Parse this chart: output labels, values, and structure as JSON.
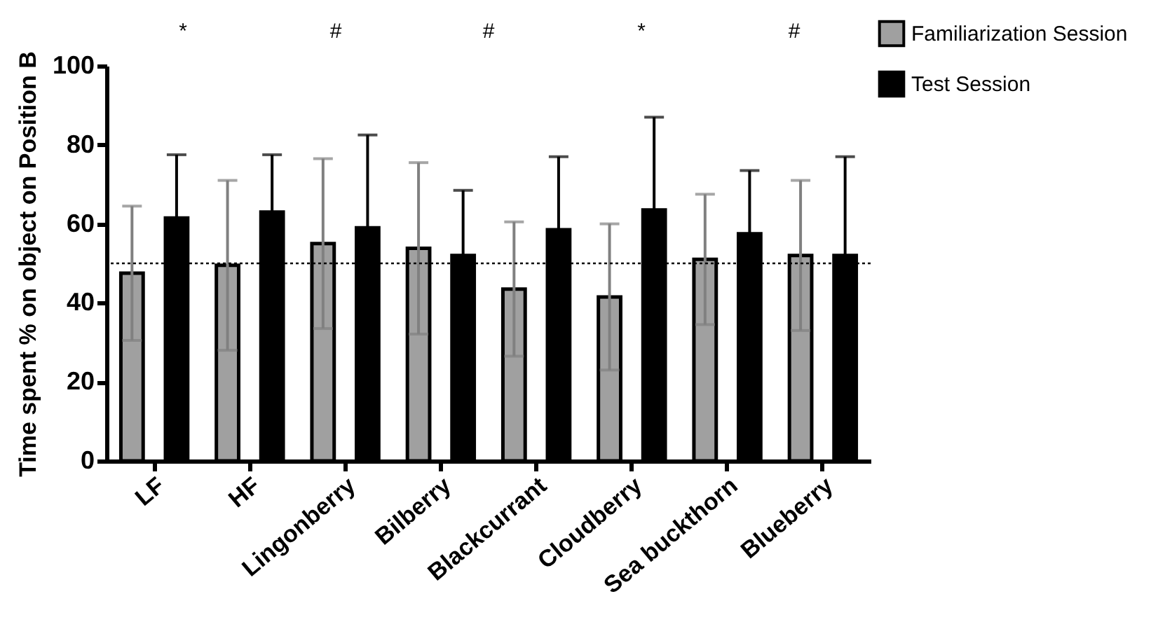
{
  "chart_data": {
    "type": "bar",
    "ylabel": "Time spent % on object on Position B",
    "categories": [
      "LF",
      "HF",
      "Lingonberry",
      "Bilberry",
      "Blackcurrant",
      "Cloudberry",
      "Sea buckthorn",
      "Blueberry"
    ],
    "series": [
      {
        "name": "Familiarization Session",
        "color": "#a0a0a0",
        "values": [
          47.5,
          49.5,
          55,
          53.8,
          43.5,
          41.5,
          51,
          52
        ],
        "errors": [
          17,
          21.5,
          21.5,
          21.7,
          17,
          18.5,
          16.5,
          19
        ]
      },
      {
        "name": "Test Session",
        "color": "#000000",
        "values": [
          61.5,
          63,
          59,
          52,
          58.5,
          63.5,
          57.5,
          52
        ],
        "errors": [
          16,
          14.5,
          23.5,
          16.5,
          18.5,
          23.5,
          16,
          25
        ]
      }
    ],
    "ylim": [
      0,
      100
    ],
    "yticks": [
      0,
      20,
      40,
      60,
      80,
      100
    ],
    "grid": false,
    "legend": "top right",
    "ref_lines": [
      {
        "axis": "y",
        "value": 50,
        "line_style": "dotted"
      }
    ],
    "annotations": [
      "*",
      "#",
      "#",
      "*",
      "#"
    ]
  }
}
